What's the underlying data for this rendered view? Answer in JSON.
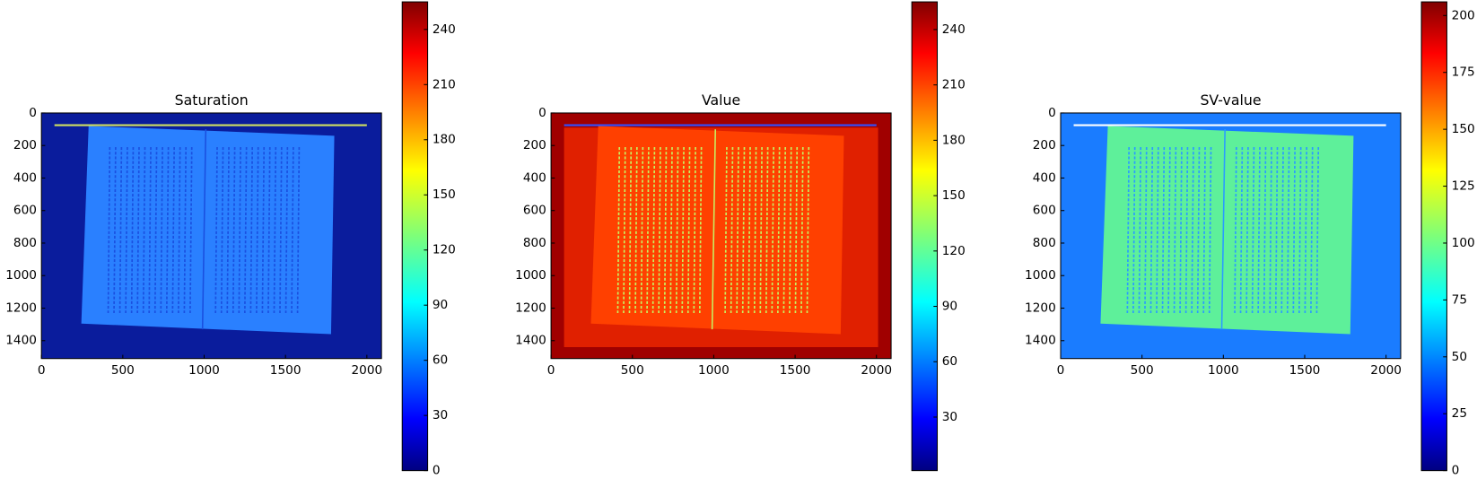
{
  "chart_data": [
    {
      "type": "image",
      "title": "Saturation",
      "colormap": "jet",
      "xlim": [
        0,
        2090
      ],
      "ylim": [
        1510,
        0
      ],
      "xticks": [
        0,
        500,
        1000,
        1500,
        2000
      ],
      "yticks": [
        0,
        200,
        400,
        600,
        800,
        1000,
        1200,
        1400
      ],
      "clim": [
        0,
        255
      ],
      "cticks": [
        0,
        30,
        60,
        90,
        120,
        150,
        180,
        210,
        240
      ]
    },
    {
      "type": "image",
      "title": "Value",
      "colormap": "jet",
      "xlim": [
        0,
        2090
      ],
      "ylim": [
        1510,
        0
      ],
      "xticks": [
        0,
        500,
        1000,
        1500,
        2000
      ],
      "yticks": [
        0,
        200,
        400,
        600,
        800,
        1000,
        1200,
        1400
      ],
      "clim": [
        1,
        255
      ],
      "cticks": [
        30,
        60,
        90,
        120,
        150,
        180,
        210,
        240
      ]
    },
    {
      "type": "image",
      "title": "SV-value",
      "colormap": "jet",
      "xlim": [
        0,
        2090
      ],
      "ylim": [
        1510,
        0
      ],
      "xticks": [
        0,
        500,
        1000,
        1500,
        2000
      ],
      "yticks": [
        0,
        200,
        400,
        600,
        800,
        1000,
        1200,
        1400
      ],
      "clim": [
        0,
        206
      ],
      "cticks": [
        0,
        25,
        50,
        75,
        100,
        125,
        150,
        175,
        200
      ]
    }
  ]
}
